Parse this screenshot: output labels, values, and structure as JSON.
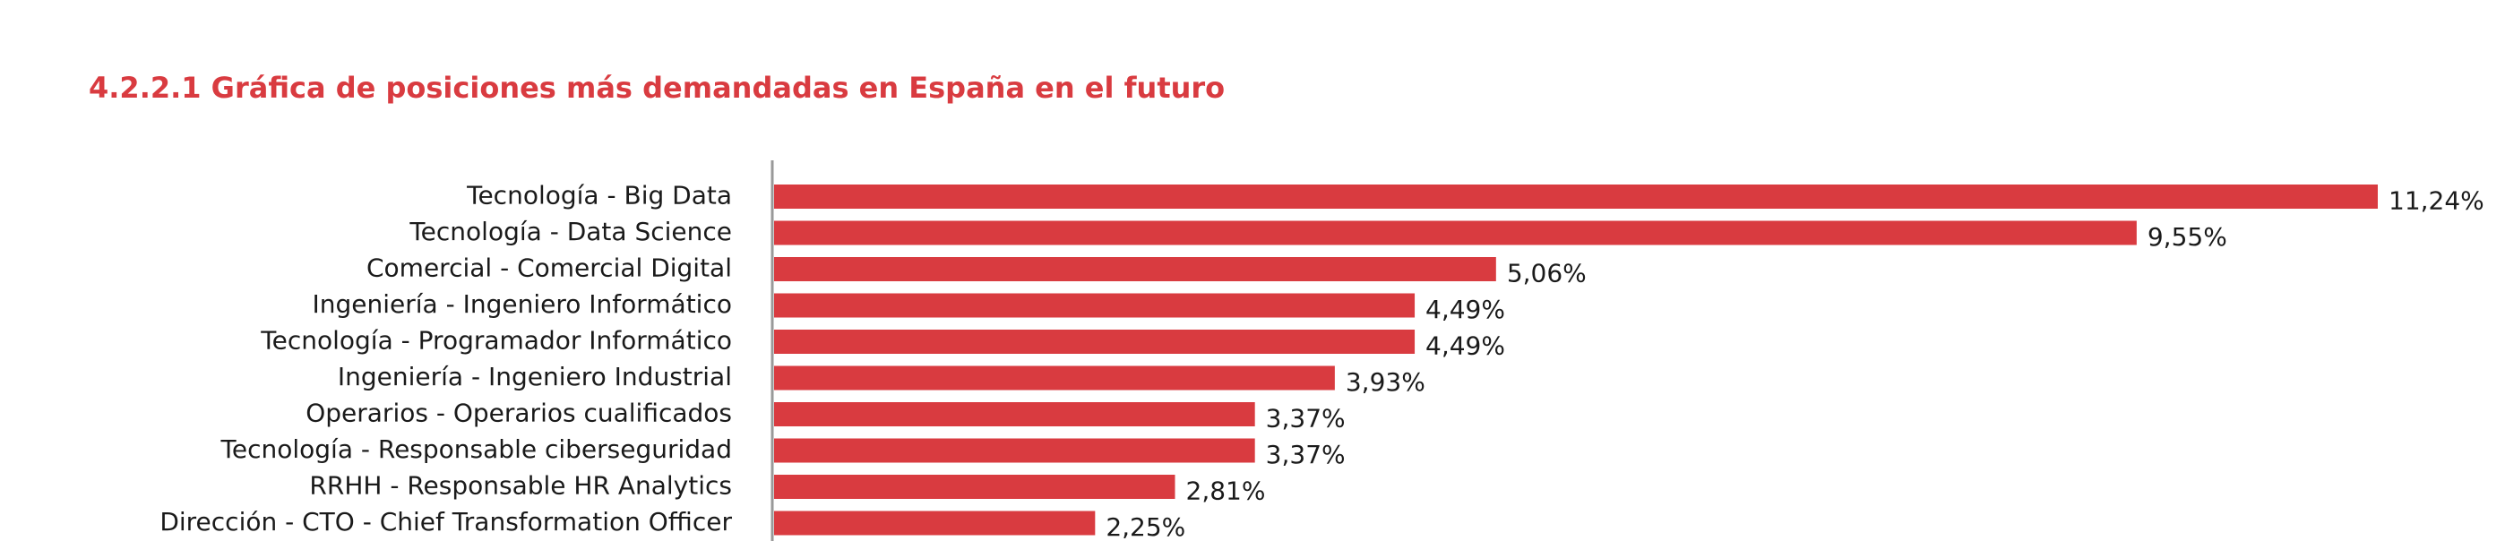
{
  "chart_data": {
    "type": "bar",
    "orientation": "horizontal",
    "title": "4.2.2.1 Gráfica de posiciones más demandadas en España en el futuro",
    "categories": [
      "Tecnología - Big Data",
      "Tecnología - Data Science",
      "Comercial - Comercial Digital",
      "Ingeniería - Ingeniero Informático",
      "Tecnología - Programador Informático",
      "Ingeniería - Ingeniero Industrial",
      "Operarios - Operarios cualificados",
      "Tecnología - Responsable ciberseguridad",
      "RRHH - Responsable HR Analytics",
      "Dirección - CTO - Chief Transformation Officer"
    ],
    "values": [
      11.24,
      9.55,
      5.06,
      4.49,
      4.49,
      3.93,
      3.37,
      3.37,
      2.81,
      2.25
    ],
    "value_labels": [
      "11,24%",
      "9,55%",
      "5,06%",
      "4,49%",
      "4,49%",
      "3,93%",
      "3,37%",
      "3,37%",
      "2,81%",
      "2,25%"
    ],
    "color": "#d93b40"
  }
}
